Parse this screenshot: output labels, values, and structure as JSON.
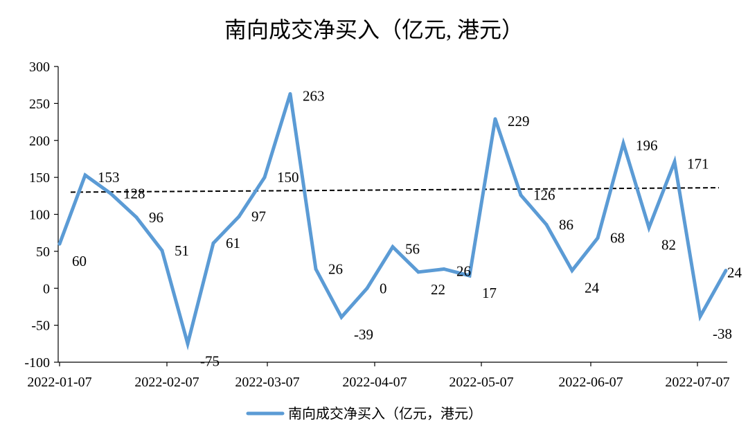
{
  "chart_data": {
    "type": "line",
    "title": "南向成交净买入（亿元, 港元）",
    "xlabel": "",
    "ylabel": "",
    "ylim": [
      -100,
      300
    ],
    "yticks": [
      -100,
      -50,
      0,
      50,
      100,
      150,
      200,
      250,
      300
    ],
    "xtick_labels": [
      "2022-01-07",
      "2022-02-07",
      "2022-03-07",
      "2022-04-07",
      "2022-05-07",
      "2022-06-07",
      "2022-07-07"
    ],
    "legend_position": "bottom",
    "grid": false,
    "colors": {
      "series": "#5B9BD5",
      "trend": "#000000"
    },
    "series": [
      {
        "name": "南向成交净买入（亿元，港元）",
        "values": [
          60,
          153,
          128,
          96,
          51,
          -75,
          61,
          97,
          150,
          263,
          26,
          -39,
          0,
          56,
          22,
          26,
          17,
          229,
          126,
          86,
          24,
          68,
          196,
          82,
          171,
          -38,
          24
        ]
      }
    ],
    "trendline": {
      "type": "linear",
      "style": "dashed",
      "start": 130,
      "end": 136
    }
  }
}
